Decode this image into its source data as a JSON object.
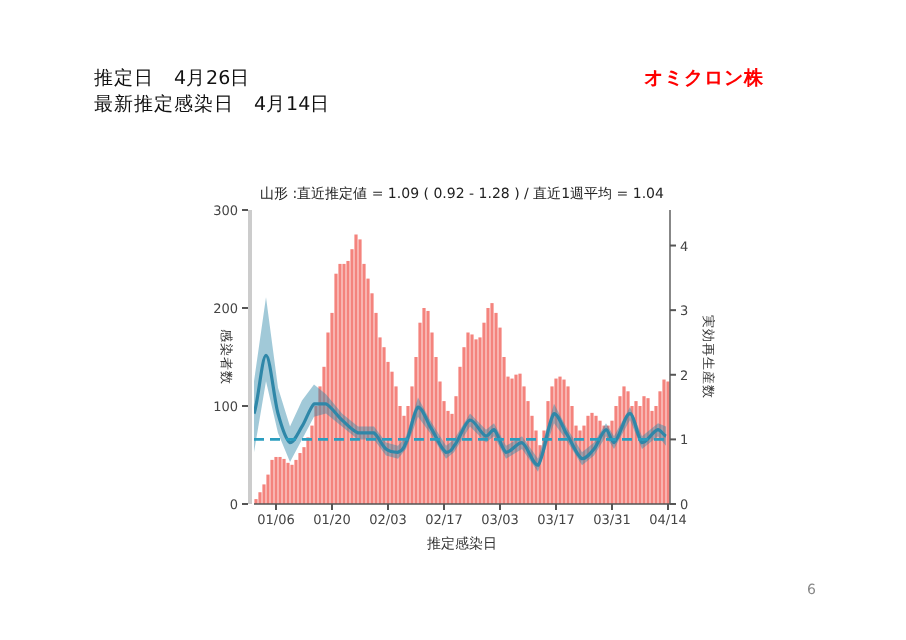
{
  "chart_data": {
    "type": "bar",
    "title": "山形 :直近推定値 = 1.09 ( 0.92 - 1.28 ) / 直近1週平均 = 1.04",
    "xlabel": "推定感染日",
    "ylabel": "感染者数",
    "y2label": "実効再生産数",
    "annotations": [
      "推定日　4月26日",
      "最新推定感染日　4月14日",
      "オミクロン株",
      "6"
    ],
    "x": [
      "--01-01",
      "--01-02",
      "--01-03",
      "--01-04",
      "--01-05",
      "--01-06",
      "--01-07",
      "--01-08",
      "--01-09",
      "--01-10",
      "--01-11",
      "--01-12",
      "--01-13",
      "--01-14",
      "--01-15",
      "--01-16",
      "--01-17",
      "--01-18",
      "--01-19",
      "--01-20",
      "--01-21",
      "--01-22",
      "--01-23",
      "--01-24",
      "--01-25",
      "--01-26",
      "--01-27",
      "--01-28",
      "--01-29",
      "--01-30",
      "--01-31",
      "--02-01",
      "--02-02",
      "--02-03",
      "--02-04",
      "--02-05",
      "--02-06",
      "--02-07",
      "--02-08",
      "--02-09",
      "--02-10",
      "--02-11",
      "--02-12",
      "--02-13",
      "--02-14",
      "--02-15",
      "--02-16",
      "--02-17",
      "--02-18",
      "--02-19",
      "--02-20",
      "--02-21",
      "--02-22",
      "--02-23",
      "--02-24",
      "--02-25",
      "--02-26",
      "--02-27",
      "--02-28",
      "--03-01",
      "--03-02",
      "--03-03",
      "--03-04",
      "--03-05",
      "--03-06",
      "--03-07",
      "--03-08",
      "--03-09",
      "--03-10",
      "--03-11",
      "--03-12",
      "--03-13",
      "--03-14",
      "--03-15",
      "--03-16",
      "--03-17",
      "--03-18",
      "--03-19",
      "--03-20",
      "--03-21",
      "--03-22",
      "--03-23",
      "--03-24",
      "--03-25",
      "--03-26",
      "--03-27",
      "--03-28",
      "--03-29",
      "--03-30",
      "--03-31",
      "--04-01",
      "--04-02",
      "--04-03",
      "--04-04",
      "--04-05",
      "--04-06",
      "--04-07",
      "--04-08",
      "--04-09",
      "--04-10",
      "--04-11",
      "--04-12",
      "--04-13",
      "--04-14"
    ],
    "series": [
      {
        "color": "#f4837d",
        "values": [
          5,
          12,
          20,
          30,
          45,
          48,
          48,
          46,
          42,
          40,
          45,
          52,
          58,
          68,
          80,
          100,
          120,
          140,
          175,
          195,
          235,
          245,
          245,
          248,
          260,
          275,
          270,
          245,
          230,
          215,
          195,
          170,
          160,
          145,
          135,
          120,
          100,
          90,
          100,
          120,
          150,
          185,
          200,
          197,
          175,
          150,
          125,
          105,
          95,
          92,
          110,
          140,
          160,
          175,
          173,
          168,
          170,
          185,
          200,
          205,
          195,
          180,
          150,
          130,
          128,
          132,
          133,
          120,
          105,
          90,
          75,
          60,
          75,
          105,
          120,
          128,
          130,
          127,
          120,
          100,
          80,
          75,
          80,
          90,
          93,
          90,
          85,
          80,
          80,
          85,
          100,
          110,
          120,
          115,
          100,
          105,
          100,
          110,
          108,
          95,
          100,
          115,
          127,
          125
        ]
      },
      {
        "type": "line",
        "axis": "y2",
        "color": "#2f87a8",
        "x": [
          "--01-01",
          "--01-04",
          "--01-07",
          "--01-10",
          "--01-13",
          "--01-16",
          "--01-19",
          "--01-23",
          "--01-27",
          "--01-31",
          "--02-03",
          "--02-06",
          "--02-08",
          "--02-11",
          "--02-14",
          "--02-18",
          "--02-20",
          "--02-24",
          "--02-28",
          "--03-02",
          "--03-05",
          "--03-09",
          "--03-13",
          "--03-17",
          "--03-20",
          "--03-24",
          "--03-27",
          "--03-30",
          "--04-01",
          "--04-05",
          "--04-08",
          "--04-12",
          "--04-14"
        ],
        "values": [
          1.4,
          2.3,
          1.4,
          0.95,
          1.2,
          1.55,
          1.55,
          1.3,
          1.1,
          1.1,
          0.85,
          0.8,
          0.95,
          1.5,
          1.2,
          0.8,
          0.9,
          1.3,
          1.05,
          1.15,
          0.8,
          0.95,
          0.6,
          1.4,
          1.1,
          0.7,
          0.85,
          1.15,
          0.95,
          1.4,
          0.95,
          1.15,
          1.05
        ],
        "lower": [
          0.8,
          1.9,
          1.1,
          0.65,
          1.0,
          1.35,
          1.4,
          1.2,
          1.0,
          1.0,
          0.75,
          0.7,
          0.85,
          1.35,
          1.1,
          0.7,
          0.8,
          1.2,
          0.95,
          1.05,
          0.7,
          0.85,
          0.5,
          1.25,
          1.0,
          0.6,
          0.75,
          1.05,
          0.85,
          1.3,
          0.85,
          1.05,
          0.9
        ],
        "upper": [
          1.9,
          3.2,
          1.8,
          1.2,
          1.6,
          1.85,
          1.7,
          1.4,
          1.2,
          1.2,
          0.95,
          0.9,
          1.05,
          1.65,
          1.3,
          0.9,
          1.0,
          1.4,
          1.15,
          1.25,
          0.9,
          1.05,
          0.7,
          1.55,
          1.2,
          0.8,
          0.95,
          1.25,
          1.05,
          1.5,
          1.05,
          1.25,
          1.2
        ]
      }
    ],
    "ref_lines": [
      {
        "axis": "y2",
        "value": 1,
        "color": "#2a9dbf",
        "line_style": "dashed"
      }
    ],
    "xlim": [
      "--01-01",
      "--04-15"
    ],
    "xticks": [
      {
        "value": "--01-06",
        "label": "01/06"
      },
      {
        "value": "--01-20",
        "label": "01/20"
      },
      {
        "value": "--02-03",
        "label": "02/03"
      },
      {
        "value": "--02-17",
        "label": "02/17"
      },
      {
        "value": "--03-03",
        "label": "03/03"
      },
      {
        "value": "--03-17",
        "label": "03/17"
      },
      {
        "value": "--03-31",
        "label": "03/31"
      },
      {
        "value": "--04-14",
        "label": "04/14"
      }
    ],
    "ylim": [
      0,
      300
    ],
    "yticks": [
      0,
      100,
      200,
      300
    ],
    "y2lim": [
      0,
      4.55
    ],
    "y2ticks": [
      0,
      1,
      2,
      3,
      4
    ],
    "grid": false
  }
}
